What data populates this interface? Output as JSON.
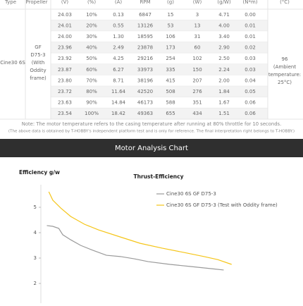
{
  "table": {
    "header": [
      "Type",
      "Propeller",
      "(V)",
      "(%)",
      "(A)",
      "RPM",
      "(g)",
      "(W)",
      "(g/W)",
      "(N*m)",
      "(°C)"
    ],
    "type": "Cine30 6S",
    "propeller": [
      "GF",
      "D75-3",
      "(With",
      "Oddity",
      "frame)"
    ],
    "temperature": [
      "96",
      "(Ambient",
      "temperature:",
      "25°C)"
    ],
    "rows": [
      [
        "24.03",
        "10%",
        "0.13",
        "6847",
        "15",
        "3",
        "4.71",
        "0.00"
      ],
      [
        "24.01",
        "20%",
        "0.55",
        "13126",
        "53",
        "13",
        "4.00",
        "0.01"
      ],
      [
        "24.00",
        "30%",
        "1.30",
        "18595",
        "106",
        "31",
        "3.40",
        "0.01"
      ],
      [
        "23.96",
        "40%",
        "2.49",
        "23878",
        "173",
        "60",
        "2.90",
        "0.02"
      ],
      [
        "23.92",
        "50%",
        "4.25",
        "29216",
        "254",
        "102",
        "2.50",
        "0.03"
      ],
      [
        "23.87",
        "60%",
        "6.27",
        "33973",
        "335",
        "150",
        "2.24",
        "0.03"
      ],
      [
        "23.80",
        "70%",
        "8.71",
        "38196",
        "415",
        "207",
        "2.00",
        "0.04"
      ],
      [
        "23.72",
        "80%",
        "11.64",
        "42520",
        "508",
        "276",
        "1.84",
        "0.05"
      ],
      [
        "23.63",
        "90%",
        "14.84",
        "46173",
        "588",
        "351",
        "1.67",
        "0.06"
      ],
      [
        "23.54",
        "100%",
        "18.42",
        "49363",
        "655",
        "434",
        "1.51",
        "0.06"
      ]
    ],
    "notes": [
      "Note: The motor temperature refers to the casing temperature after running at 80% throttle for 10 seconds.",
      "(The above data is obtained by T-HOBBY's independent platform test and is only for reference. The final interpretation right belongs to T-HOBBY.)"
    ]
  },
  "section_title": "Motor Analysis Chart",
  "chart_data": {
    "type": "line",
    "title": "Thrust-Efficiency",
    "y_label": "Efficiency g/w",
    "xlim": [
      0,
      100
    ],
    "ylim": [
      1.2,
      5.8
    ],
    "yticks": [
      2,
      3,
      4,
      5
    ],
    "series": [
      {
        "name": "Cine30 6S GF  D75-3",
        "color": "#9a9a9a",
        "x": [
          3,
          6,
          9,
          11,
          15,
          20,
          26,
          33,
          40,
          47,
          54,
          65,
          75,
          86,
          92
        ],
        "values": [
          4.28,
          4.25,
          4.17,
          3.92,
          3.72,
          3.5,
          3.31,
          3.11,
          3.06,
          2.97,
          2.86,
          2.75,
          2.67,
          2.58,
          2.53
        ]
      },
      {
        "name": "Cine30 6S GF D75-3  (Test with Oddity frame)",
        "color": "#f5c518",
        "x": [
          4,
          6,
          10,
          15,
          22,
          29,
          40,
          50,
          61,
          72,
          82,
          89,
          96
        ],
        "values": [
          5.61,
          5.28,
          4.97,
          4.64,
          4.33,
          4.11,
          3.83,
          3.58,
          3.39,
          3.22,
          3.06,
          2.94,
          2.75
        ]
      }
    ]
  }
}
